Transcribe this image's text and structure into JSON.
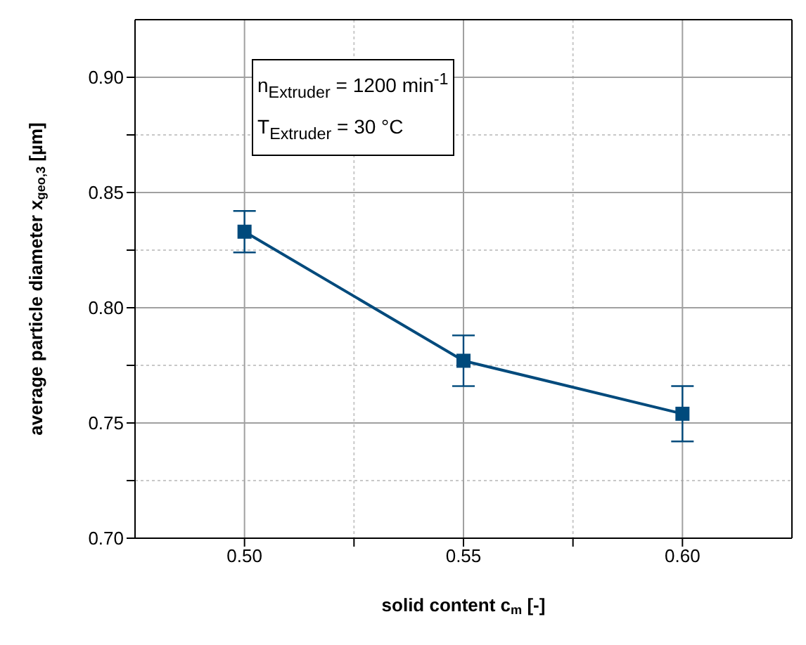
{
  "chart_data": {
    "type": "line",
    "xlabel": "solid content c$_{m}$ [-]",
    "ylabel": "average particle diameter x$_{geo,3}$ [µm]",
    "annotations": [
      "n$_{Extruder}$ = 1200 min$^{-1}$",
      "T$_{Extruder}$ = 30 °C"
    ],
    "x": [
      0.5,
      0.55,
      0.6
    ],
    "series": [
      {
        "color": "#004a7c",
        "values": [
          0.833,
          0.777,
          0.754
        ],
        "errors": [
          0.009,
          0.011,
          0.012
        ]
      }
    ],
    "xlim": [
      0.475,
      0.625
    ],
    "xticks": [
      {
        "value": 0.5,
        "label": "0.50"
      },
      {
        "value": 0.525,
        "label": null
      },
      {
        "value": 0.55,
        "label": "0.55"
      },
      {
        "value": 0.575,
        "label": null
      },
      {
        "value": 0.6,
        "label": "0.60"
      }
    ],
    "ylim": [
      0.7,
      0.925
    ],
    "yticks": [
      {
        "value": 0.7,
        "label": "0.70"
      },
      {
        "value": 0.725,
        "label": null
      },
      {
        "value": 0.75,
        "label": "0.75"
      },
      {
        "value": 0.775,
        "label": null
      },
      {
        "value": 0.8,
        "label": "0.80"
      },
      {
        "value": 0.825,
        "label": null
      },
      {
        "value": 0.85,
        "label": "0.85"
      },
      {
        "value": 0.875,
        "label": null
      },
      {
        "value": 0.9,
        "label": "0.90"
      }
    ],
    "grid": true,
    "marker": "square",
    "line_style": "solid"
  }
}
